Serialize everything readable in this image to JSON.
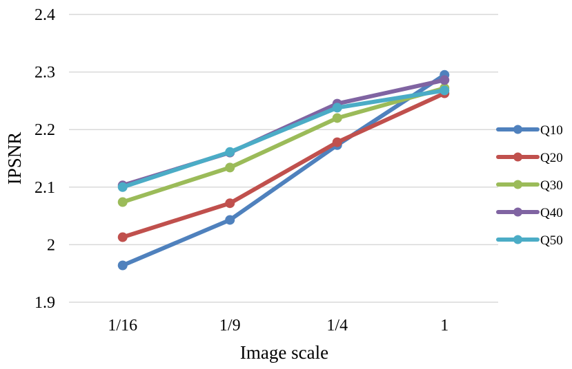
{
  "chart_data": {
    "type": "line",
    "title": "",
    "xlabel": "Image scale",
    "ylabel": "IPSNR",
    "categories": [
      "1/16",
      "1/9",
      "1/4",
      "1"
    ],
    "ylim": [
      1.9,
      2.4
    ],
    "yticks": [
      1.9,
      2,
      2.1,
      2.2,
      2.3,
      2.4
    ],
    "ytick_labels": [
      "1.9",
      "2",
      "2.1",
      "2.2",
      "2.3",
      "2.4"
    ],
    "grid": true,
    "legend": "right",
    "series": [
      {
        "name": "Q10",
        "color": "#4f81bd",
        "values": [
          1.964,
          2.043,
          2.173,
          2.295
        ]
      },
      {
        "name": "Q20",
        "color": "#c0504d",
        "values": [
          2.013,
          2.072,
          2.178,
          2.263
        ]
      },
      {
        "name": "Q30",
        "color": "#9bbb59",
        "values": [
          2.074,
          2.134,
          2.22,
          2.272
        ]
      },
      {
        "name": "Q40",
        "color": "#8064a2",
        "values": [
          2.103,
          2.16,
          2.245,
          2.286
        ]
      },
      {
        "name": "Q50",
        "color": "#4bacc6",
        "values": [
          2.1,
          2.161,
          2.238,
          2.268
        ]
      }
    ]
  }
}
